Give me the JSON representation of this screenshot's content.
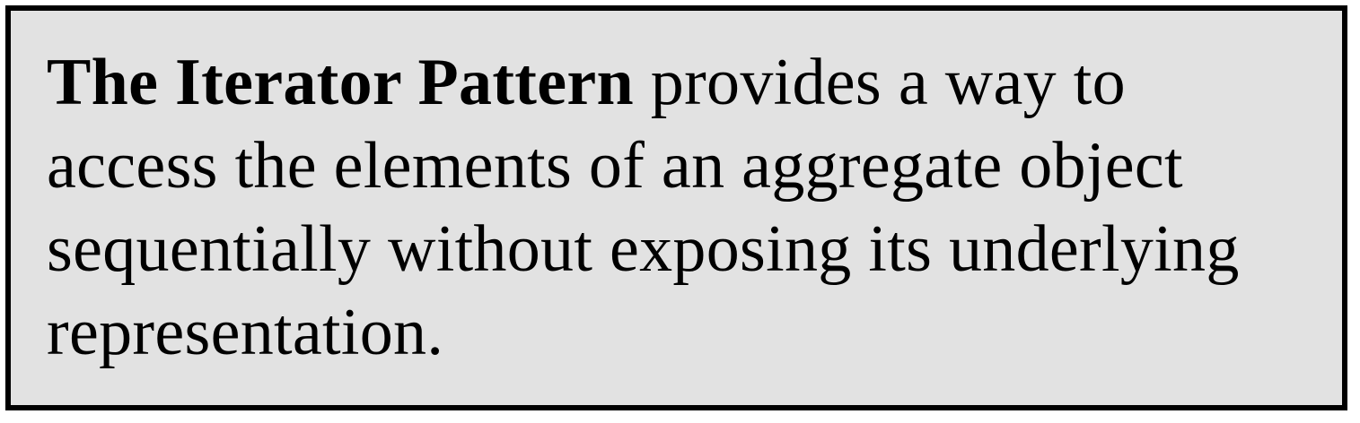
{
  "definition": {
    "term": "The Iterator Pattern",
    "lines": [
      " provides a way to",
      "access the elements of an aggregate object",
      "sequentially without exposing its underlying",
      "representation."
    ]
  }
}
